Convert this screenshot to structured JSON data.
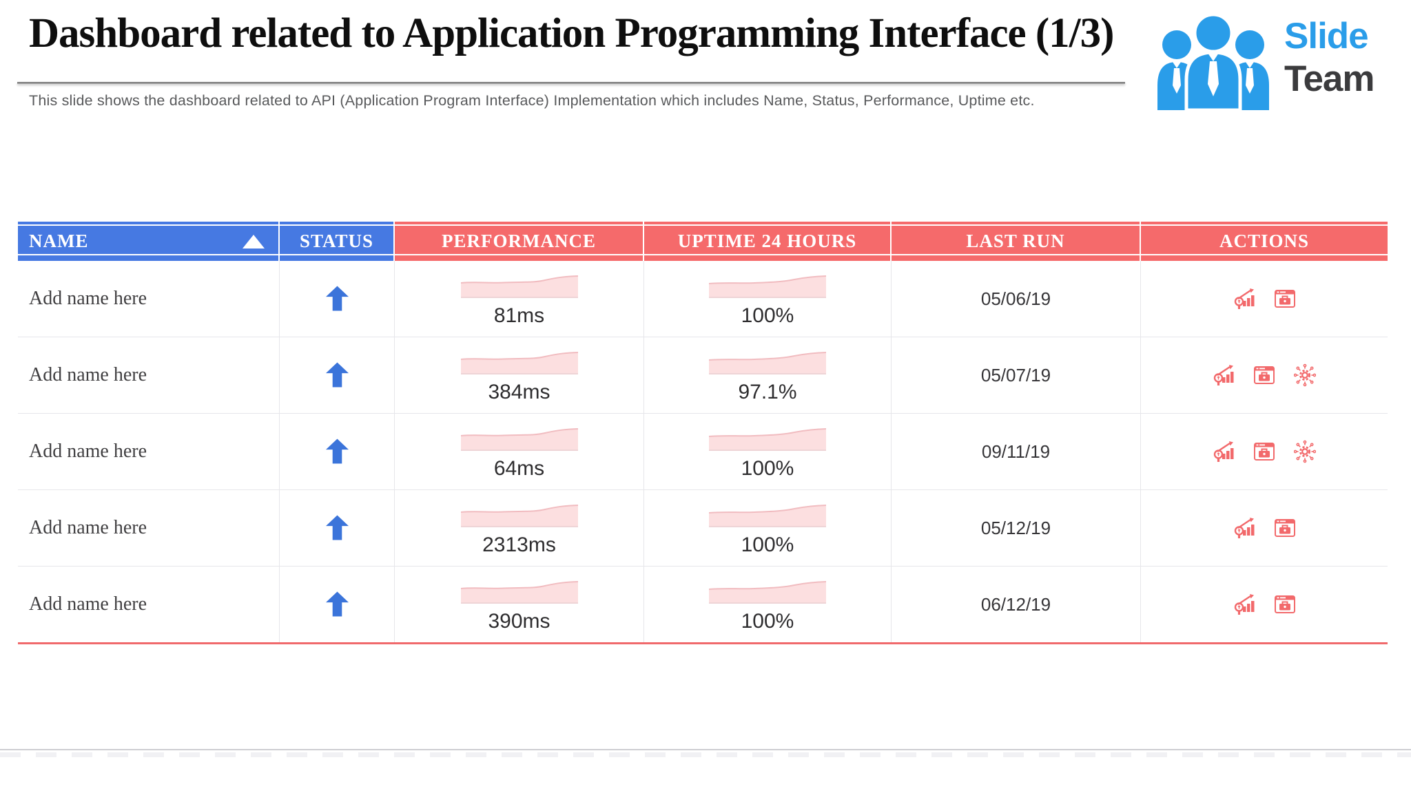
{
  "slide": {
    "title": "Dashboard related to Application Programming Interface (1/3)",
    "subtitle": "This slide shows the dashboard related to API (Application Program Interface) Implementation which includes Name, Status, Performance, Uptime etc.",
    "logo": {
      "line1": "Slide",
      "line2": "Team",
      "icon": "team-people-icon",
      "blue": "#2a9de9",
      "dark": "#3b3b3d"
    }
  },
  "table": {
    "columns": [
      {
        "key": "name",
        "label": "NAME",
        "accent": "blue",
        "sort_indicator": "asc"
      },
      {
        "key": "status",
        "label": "STATUS",
        "accent": "blue"
      },
      {
        "key": "performance",
        "label": "PERFORMANCE",
        "accent": "red"
      },
      {
        "key": "uptime",
        "label": "UPTIME 24 HOURS",
        "accent": "red"
      },
      {
        "key": "last_run",
        "label": "LAST RUN",
        "accent": "red"
      },
      {
        "key": "actions",
        "label": "ACTIONS",
        "accent": "red"
      }
    ],
    "rows": [
      {
        "name": "Add name here",
        "status": "up",
        "performance": "81ms",
        "uptime": "100%",
        "last_run": "05/06/19",
        "actions": [
          "analytics",
          "portfolio"
        ]
      },
      {
        "name": "Add name here",
        "status": "up",
        "performance": "384ms",
        "uptime": "97.1%",
        "last_run": "05/07/19",
        "actions": [
          "analytics",
          "portfolio",
          "integration"
        ]
      },
      {
        "name": "Add name here",
        "status": "up",
        "performance": "64ms",
        "uptime": "100%",
        "last_run": "09/11/19",
        "actions": [
          "analytics",
          "portfolio",
          "integration"
        ]
      },
      {
        "name": "Add name here",
        "status": "up",
        "performance": "2313ms",
        "uptime": "100%",
        "last_run": "05/12/19",
        "actions": [
          "analytics",
          "portfolio"
        ]
      },
      {
        "name": "Add name here",
        "status": "up",
        "performance": "390ms",
        "uptime": "100%",
        "last_run": "06/12/19",
        "actions": [
          "analytics",
          "portfolio"
        ]
      }
    ],
    "action_icons": {
      "analytics": "analytics-search-icon",
      "portfolio": "portfolio-window-icon",
      "integration": "gear-network-icon"
    },
    "icons": {
      "sort": "sort-asc-triangle-icon",
      "status_up": "status-up-arrow-icon"
    },
    "colors": {
      "header_blue": "#4679e2",
      "header_red": "#f56a6b",
      "status_arrow_blue": "#3b74da",
      "action_icon_red": "#f2696b",
      "sparkline_fill": "#fcdfe0",
      "table_bottom_line": "#f0696b"
    }
  }
}
